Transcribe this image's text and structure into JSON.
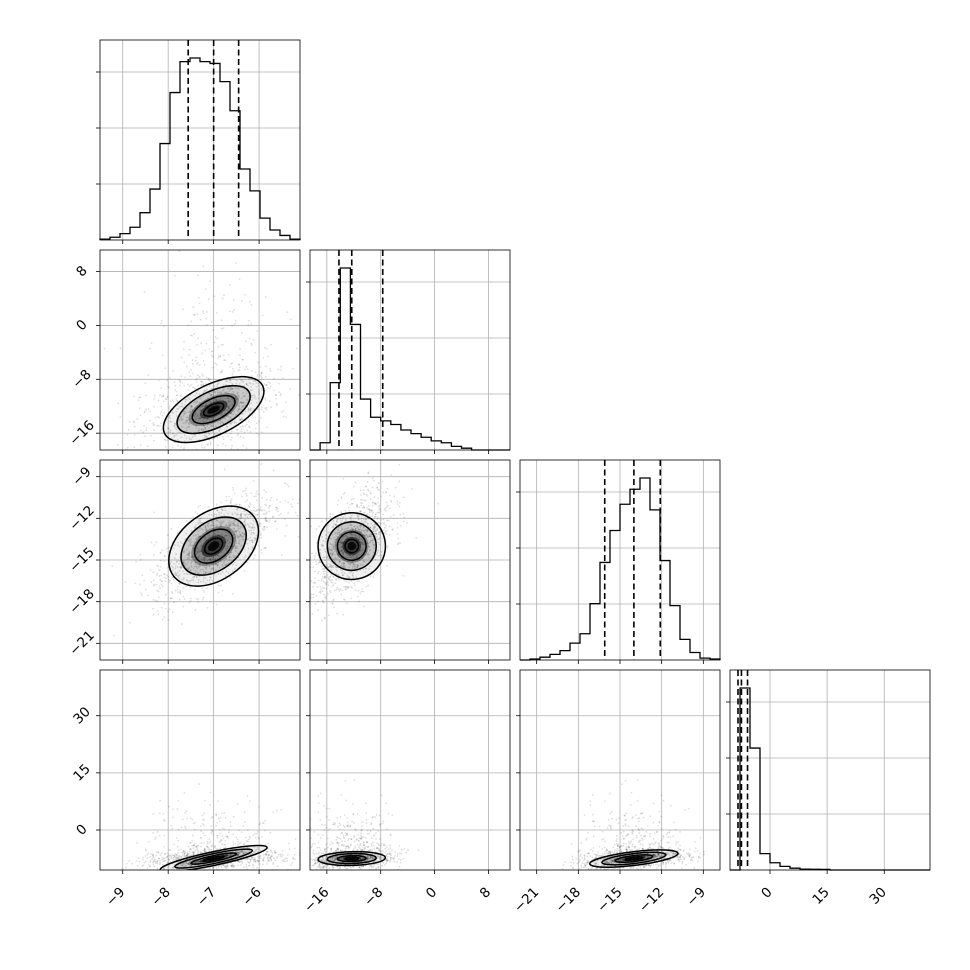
{
  "chart_data": {
    "type": "corner",
    "title": "",
    "grid": true,
    "quantiles": [
      0.16,
      0.5,
      0.84
    ],
    "parameters": [
      {
        "xlim": [
          -9.5,
          -5.1
        ],
        "ticks": [
          -9,
          -8,
          -7,
          -6
        ],
        "tick_labels": [
          "−9",
          "−8",
          "−7",
          "−6"
        ]
      },
      {
        "xlim": [
          -18.5,
          11.2
        ],
        "ticks": [
          -16,
          -8,
          0,
          8
        ],
        "tick_labels": [
          "−16",
          "−8",
          "0",
          "8"
        ]
      },
      {
        "xlim": [
          -22.2,
          -7.8
        ],
        "ticks": [
          -21,
          -18,
          -15,
          -12,
          -9
        ],
        "tick_labels": [
          "−21",
          "−18",
          "−15",
          "−12",
          "−9"
        ]
      },
      {
        "xlim": [
          -10.5,
          42.0
        ],
        "ticks": [
          0,
          15,
          30
        ],
        "tick_labels": [
          "0",
          "15",
          "30"
        ]
      }
    ],
    "histograms": [
      {
        "param": 0,
        "edges": [
          -9.5,
          -9.28,
          -9.06,
          -8.84,
          -8.62,
          -8.4,
          -8.18,
          -7.96,
          -7.74,
          -7.52,
          -7.3,
          -7.08,
          -6.86,
          -6.64,
          -6.42,
          -6.2,
          -5.98,
          -5.76,
          -5.54,
          -5.32,
          -5.1
        ],
        "counts": [
          0.5,
          1.5,
          3.5,
          7,
          15,
          28,
          53,
          81,
          98,
          100,
          98,
          97,
          87,
          71,
          39,
          27,
          12,
          5.5,
          2.5,
          0.5
        ],
        "quantile_values": [
          -7.56,
          -7.0,
          -6.45
        ]
      },
      {
        "param": 1,
        "edges": [
          -18.5,
          -17.0,
          -15.5,
          -14.0,
          -12.5,
          -11.0,
          -9.5,
          -8.0,
          -6.5,
          -5.0,
          -3.5,
          -2.0,
          -0.5,
          1.0,
          2.5,
          4.0,
          5.5,
          7.0,
          8.5,
          10.0,
          11.2
        ],
        "counts": [
          0,
          4,
          37,
          100,
          69,
          28,
          18,
          16,
          14,
          11,
          9,
          7,
          5,
          4,
          2,
          1,
          0,
          0,
          0,
          0
        ],
        "quantile_values": [
          -14.2,
          -12.3,
          -7.7
        ]
      },
      {
        "param": 2,
        "edges": [
          -22.2,
          -21.48,
          -20.76,
          -20.04,
          -19.32,
          -18.6,
          -17.88,
          -17.16,
          -16.44,
          -15.72,
          -15.0,
          -14.28,
          -13.56,
          -12.84,
          -12.12,
          -11.4,
          -10.68,
          -9.96,
          -9.24,
          -8.52,
          -7.8
        ],
        "counts": [
          0,
          0.5,
          1.5,
          3,
          5,
          9,
          14,
          30,
          52,
          69,
          83,
          91,
          97,
          80,
          53,
          29,
          11,
          4,
          1,
          0.5
        ],
        "quantile_values": [
          -16.1,
          -14.0,
          -12.1
        ]
      },
      {
        "param": 3,
        "edges": [
          -10.5,
          -7.875,
          -5.25,
          -2.625,
          0,
          2.625,
          5.25,
          7.875,
          10.5,
          13.125,
          15.75,
          18.375,
          21.0,
          23.625,
          26.25,
          28.875,
          31.5,
          34.125,
          36.75,
          39.375,
          42.0
        ],
        "counts": [
          0,
          100,
          67,
          9,
          4,
          2,
          1,
          0.5,
          0.4,
          0.3,
          0,
          0,
          0,
          0,
          0,
          0,
          0,
          0,
          0,
          0
        ],
        "quantile_values": [
          -8.4,
          -7.5,
          -5.9
        ]
      }
    ],
    "scatter_2d": [
      {
        "x_param": 0,
        "y_param": 1,
        "center": [
          -7.0,
          -12.5
        ],
        "spread": [
          0.6,
          2.5
        ],
        "corr": 0.25,
        "y_tail": 6.0
      },
      {
        "x_param": 0,
        "y_param": 2,
        "center": [
          -7.0,
          -14.0
        ],
        "spread": [
          0.55,
          1.6
        ],
        "corr": 0.68,
        "y_tail": 0
      },
      {
        "x_param": 1,
        "y_param": 2,
        "center": [
          -12.3,
          -14.0
        ],
        "spread": [
          2.5,
          1.6
        ],
        "corr": 0.55,
        "y_tail": 0
      },
      {
        "x_param": 0,
        "y_param": 3,
        "center": [
          -7.0,
          -7.5
        ],
        "spread": [
          0.6,
          1.2
        ],
        "corr": 0.2,
        "y_tail": 5.0
      },
      {
        "x_param": 1,
        "y_param": 3,
        "center": [
          -12.3,
          -7.5
        ],
        "spread": [
          2.5,
          1.2
        ],
        "corr": 0.1,
        "y_tail": 5.0
      },
      {
        "x_param": 2,
        "y_param": 3,
        "center": [
          -14.0,
          -7.5
        ],
        "spread": [
          1.6,
          1.2
        ],
        "corr": 0.3,
        "y_tail": 5.0
      }
    ]
  }
}
